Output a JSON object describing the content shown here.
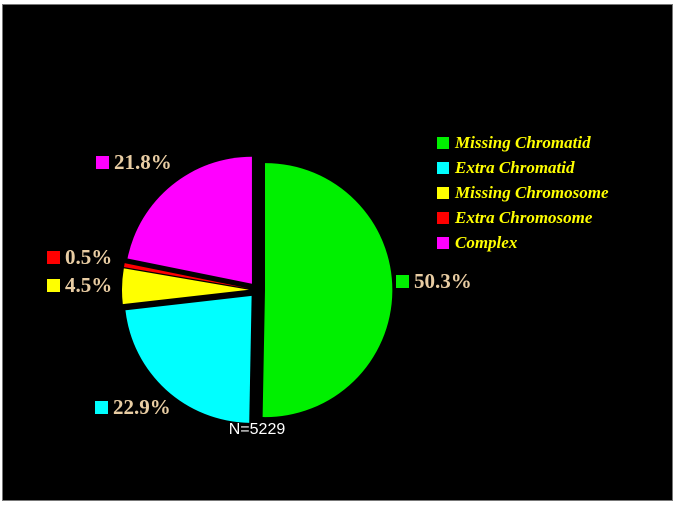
{
  "page": {
    "background": "#ffffff",
    "canvas_background": "#000000",
    "canvas_border_color": "#777777"
  },
  "chart_data": {
    "type": "pie",
    "title": "",
    "start_angle": "12 o'clock",
    "direction": "clockwise",
    "exploded": true,
    "legend_position": "right",
    "n_label": "N=5229",
    "n_label_color": "#ffffff",
    "pct_label_color": "#e9cda3",
    "legend_text_color": "#ffff00",
    "slices": [
      {
        "label": "Missing Chromatid",
        "value": 50.3,
        "pct_label": "50.3%",
        "color": "#00f000"
      },
      {
        "label": "Extra Chromatid",
        "value": 22.9,
        "pct_label": "22.9%",
        "color": "#00ffff"
      },
      {
        "label": "Missing Chromosome",
        "value": 4.5,
        "pct_label": "4.5%",
        "color": "#ffff00"
      },
      {
        "label": "Extra Chromosome",
        "value": 0.5,
        "pct_label": "0.5%",
        "color": "#ff0000"
      },
      {
        "label": "Complex",
        "value": 21.8,
        "pct_label": "21.8%",
        "color": "#ff00ff"
      }
    ]
  }
}
